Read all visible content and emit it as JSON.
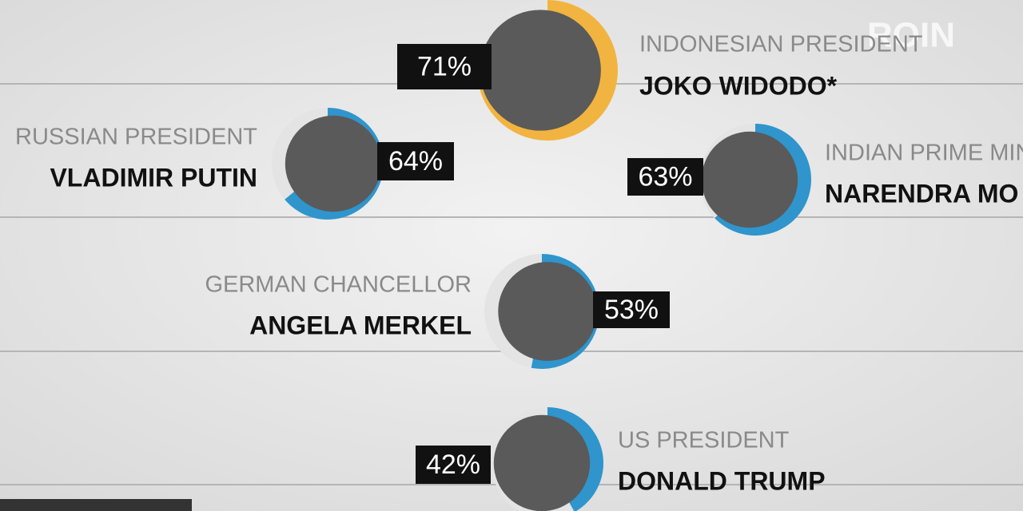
{
  "chart_data": {
    "type": "ring",
    "categories": [
      "JOKO WIDODO*",
      "VLADIMIR PUTIN",
      "NARENDRA MO",
      "ANGELA MERKEL",
      "DONALD TRUMP"
    ],
    "roles": [
      "INDONESIAN PRESIDENT",
      "RUSSIAN PRESIDENT",
      "INDIAN PRIME MIN",
      "GERMAN CHANCELLOR",
      "US PRESIDENT"
    ],
    "values": [
      71,
      64,
      63,
      53,
      42
    ],
    "value_labels": [
      "71%",
      "64%",
      "63%",
      "53%",
      "42%"
    ],
    "colors": [
      "#f2b440",
      "#2f95cc",
      "#2f95cc",
      "#2f95cc",
      "#2f95cc"
    ],
    "watermark": "ROIN"
  }
}
